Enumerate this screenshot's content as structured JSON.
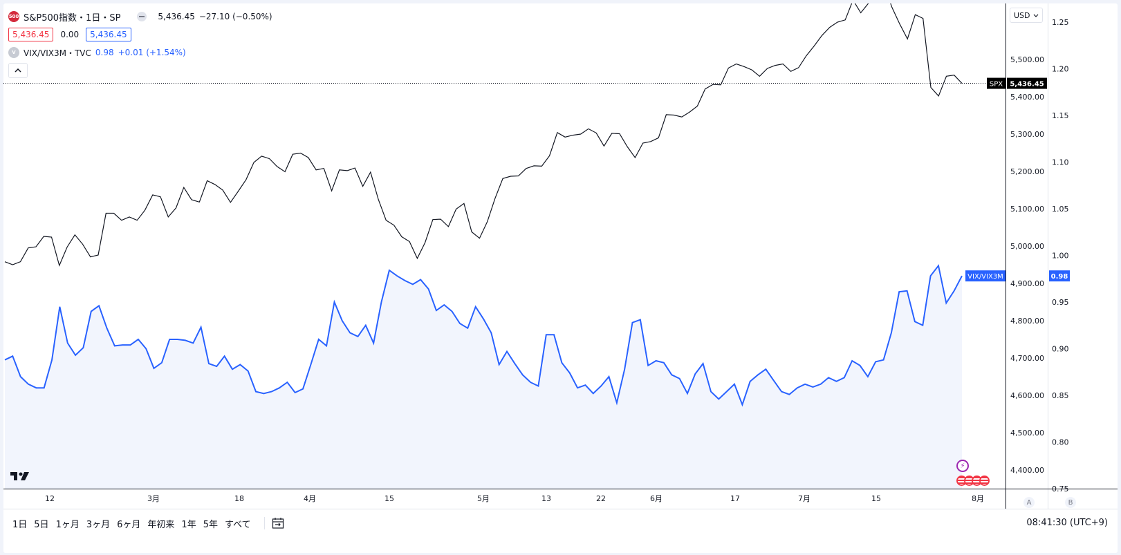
{
  "legend": {
    "main_symbol": {
      "badge": "500",
      "title": "S&P500指数・1日・SP",
      "last": "5,436.45",
      "change": "−27.10 (−0.50%)",
      "bid": "5,436.45",
      "spread": "0.00",
      "ask": "5,436.45"
    },
    "compare_symbol": {
      "badge": "V",
      "name": "VIX/VIX3M・TVC",
      "value": "0.98",
      "change": "+0.01 (+1.54%)"
    }
  },
  "currency": "USD",
  "bottom": {
    "ranges": [
      "1日",
      "5日",
      "1ヶ月",
      "3ヶ月",
      "6ヶ月",
      "年初来",
      "1年",
      "5年",
      "すべて"
    ],
    "clock": "08:41:30 (UTC+9)",
    "axis_buttons": [
      "A",
      "B"
    ]
  },
  "colors": {
    "spx_line": "#131722",
    "vix_line": "#2962ff",
    "vix_fill": "#f2f5fd",
    "label_bg": "#000000",
    "vix_label_bg": "#2962ff",
    "flag_red": "#f23645",
    "flash_purple": "#9c27b0"
  },
  "icons": [
    "tradingview-logo-icon",
    "lightning-icon",
    "us-flag-icon",
    "calendar-range-icon",
    "chevron-up-icon",
    "chevron-down-icon"
  ],
  "chart_data": {
    "type": "line",
    "x_tick_labels": [
      "12",
      "3月",
      "18",
      "4月",
      "15",
      "5月",
      "13",
      "22",
      "6月",
      "17",
      "7月",
      "15",
      "8月"
    ],
    "price_labels": {
      "spx_name": "SPX",
      "spx_value": "5,436.45",
      "vix_name": "VIX/VIX3M",
      "vix_value": "0.98"
    },
    "left_axis": {
      "ticks": [
        "5,500.00",
        "5,400.00",
        "5,300.00",
        "5,200.00",
        "5,100.00",
        "5,000.00",
        "4,900.00",
        "4,800.00",
        "4,700.00",
        "4,600.00",
        "4,500.00",
        "4,400.00"
      ],
      "range": [
        4350,
        5650
      ]
    },
    "right_axis": {
      "ticks": [
        "1.25",
        "1.20",
        "1.15",
        "1.10",
        "1.05",
        "1.00",
        "0.95",
        "0.90",
        "0.85",
        "0.80",
        "0.75"
      ],
      "range": [
        0.75,
        1.27
      ]
    },
    "series": [
      {
        "name": "SPX",
        "axis": "left",
        "values": [
          4958,
          4950,
          4958,
          4995,
          4998,
          5026,
          5024,
          4948,
          4997,
          5030,
          5005,
          4971,
          4976,
          5088,
          5088,
          5069,
          5078,
          5069,
          5096,
          5137,
          5132,
          5078,
          5102,
          5157,
          5124,
          5118,
          5175,
          5165,
          5150,
          5117,
          5147,
          5178,
          5224,
          5241,
          5234,
          5213,
          5199,
          5246,
          5249,
          5237,
          5204,
          5208,
          5148,
          5204,
          5202,
          5209,
          5160,
          5198,
          5125,
          5069,
          5056,
          5025,
          5012,
          4967,
          5009,
          5071,
          5072,
          5052,
          5099,
          5114,
          5038,
          5021,
          5065,
          5128,
          5181,
          5187,
          5188,
          5208,
          5215,
          5214,
          5242,
          5304,
          5292,
          5297,
          5300,
          5314,
          5303,
          5268,
          5302,
          5301,
          5266,
          5237,
          5276,
          5280,
          5290,
          5352,
          5351,
          5346,
          5359,
          5375,
          5421,
          5433,
          5432,
          5477,
          5488,
          5481,
          5472,
          5455,
          5476,
          5484,
          5488,
          5468,
          5478,
          5510,
          5536,
          5564,
          5586,
          5600,
          5606,
          5659,
          5625,
          5651,
          5668,
          5700,
          5640,
          5595,
          5555,
          5620,
          5610,
          5425,
          5402,
          5455,
          5458,
          5436
        ]
      },
      {
        "name": "VIX/VIX3M",
        "axis": "right",
        "values": [
          0.888,
          0.892,
          0.87,
          0.862,
          0.858,
          0.858,
          0.888,
          0.945,
          0.906,
          0.893,
          0.901,
          0.94,
          0.946,
          0.922,
          0.903,
          0.904,
          0.904,
          0.91,
          0.9,
          0.879,
          0.885,
          0.91,
          0.91,
          0.909,
          0.906,
          0.923,
          0.884,
          0.881,
          0.892,
          0.878,
          0.883,
          0.876,
          0.854,
          0.852,
          0.854,
          0.858,
          0.864,
          0.853,
          0.857,
          0.883,
          0.91,
          0.903,
          0.95,
          0.93,
          0.917,
          0.913,
          0.925,
          0.906,
          0.95,
          0.984,
          0.978,
          0.973,
          0.969,
          0.974,
          0.964,
          0.941,
          0.947,
          0.94,
          0.927,
          0.922,
          0.945,
          0.932,
          0.917,
          0.883,
          0.897,
          0.884,
          0.872,
          0.864,
          0.86,
          0.915,
          0.915,
          0.885,
          0.874,
          0.858,
          0.861,
          0.852,
          0.86,
          0.87,
          0.842,
          0.878,
          0.928,
          0.931,
          0.882,
          0.887,
          0.885,
          0.872,
          0.868,
          0.852,
          0.873,
          0.884,
          0.854,
          0.846,
          0.854,
          0.862,
          0.84,
          0.865,
          0.872,
          0.878,
          0.866,
          0.854,
          0.851,
          0.858,
          0.862,
          0.859,
          0.862,
          0.869,
          0.865,
          0.869,
          0.887,
          0.882,
          0.87,
          0.886,
          0.888,
          0.917,
          0.961,
          0.962,
          0.929,
          0.925,
          0.978,
          0.989,
          0.949,
          0.962,
          0.978
        ]
      }
    ]
  }
}
